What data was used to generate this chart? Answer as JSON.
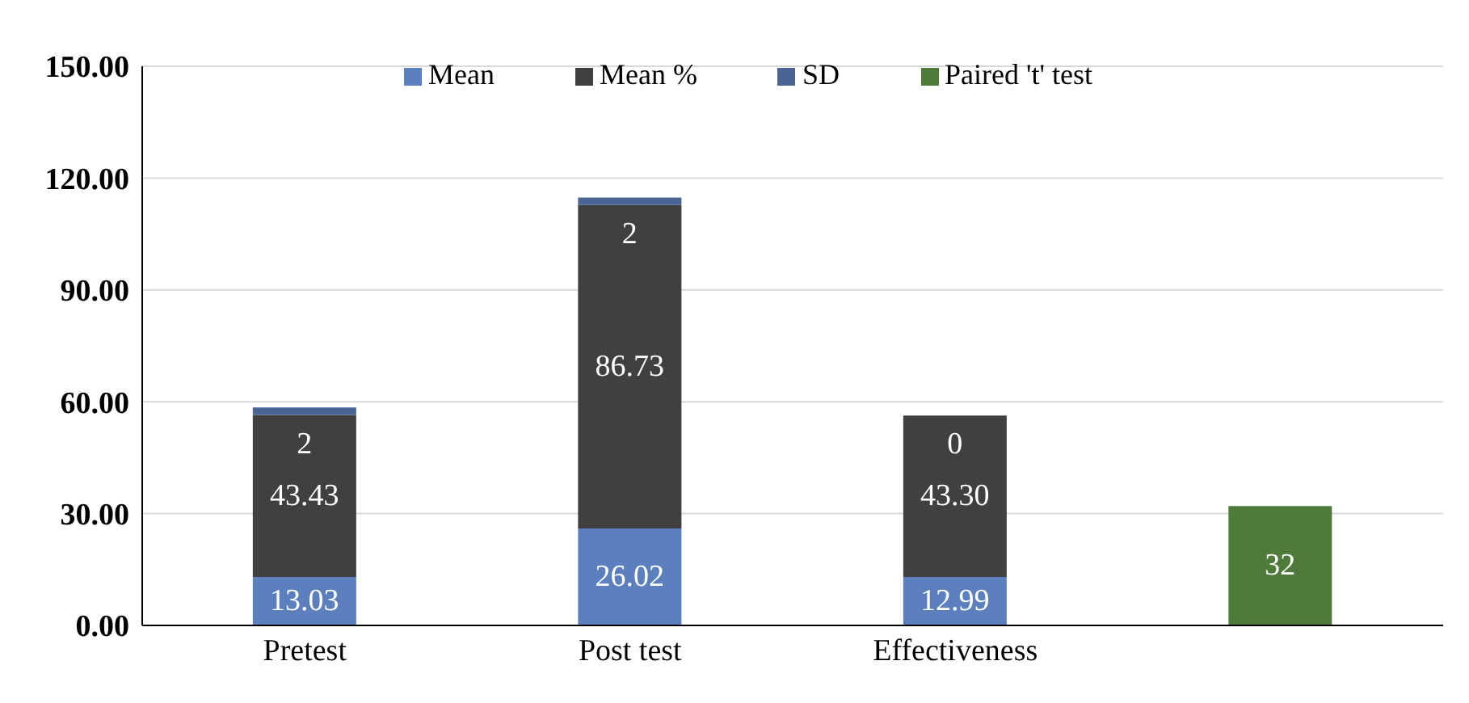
{
  "chart_data": {
    "type": "bar",
    "stacked": true,
    "categories": [
      "Pretest",
      "Post test",
      "Effectiveness",
      null
    ],
    "series": [
      {
        "name": "Mean",
        "color": "#5b80bd",
        "values": [
          13.03,
          26.02,
          12.99,
          null
        ],
        "value_labels": [
          "13.03",
          "26.02",
          "12.99",
          null
        ]
      },
      {
        "name": "Mean %",
        "color": "#404040",
        "values": [
          43.43,
          86.73,
          43.3,
          null
        ],
        "value_labels": [
          "43.43",
          "86.73",
          "43.30",
          null
        ]
      },
      {
        "name": "SD",
        "color": "#4a6494",
        "values": [
          2,
          2,
          0,
          null
        ],
        "value_labels": [
          "2",
          "2",
          "0",
          null
        ]
      },
      {
        "name": "Paired 't' test",
        "color": "#4e7a3a",
        "values": [
          null,
          null,
          null,
          32
        ],
        "value_labels": [
          null,
          null,
          null,
          "32"
        ]
      }
    ],
    "ylim": [
      0,
      150
    ],
    "yticks": [
      {
        "value": 0,
        "label": "0.00"
      },
      {
        "value": 30,
        "label": "30.00"
      },
      {
        "value": 60,
        "label": "60.00"
      },
      {
        "value": 90,
        "label": "90.00"
      },
      {
        "value": 120,
        "label": "120.00"
      },
      {
        "value": 150,
        "label": "150.00"
      }
    ],
    "grid": "y",
    "legend": "top"
  }
}
